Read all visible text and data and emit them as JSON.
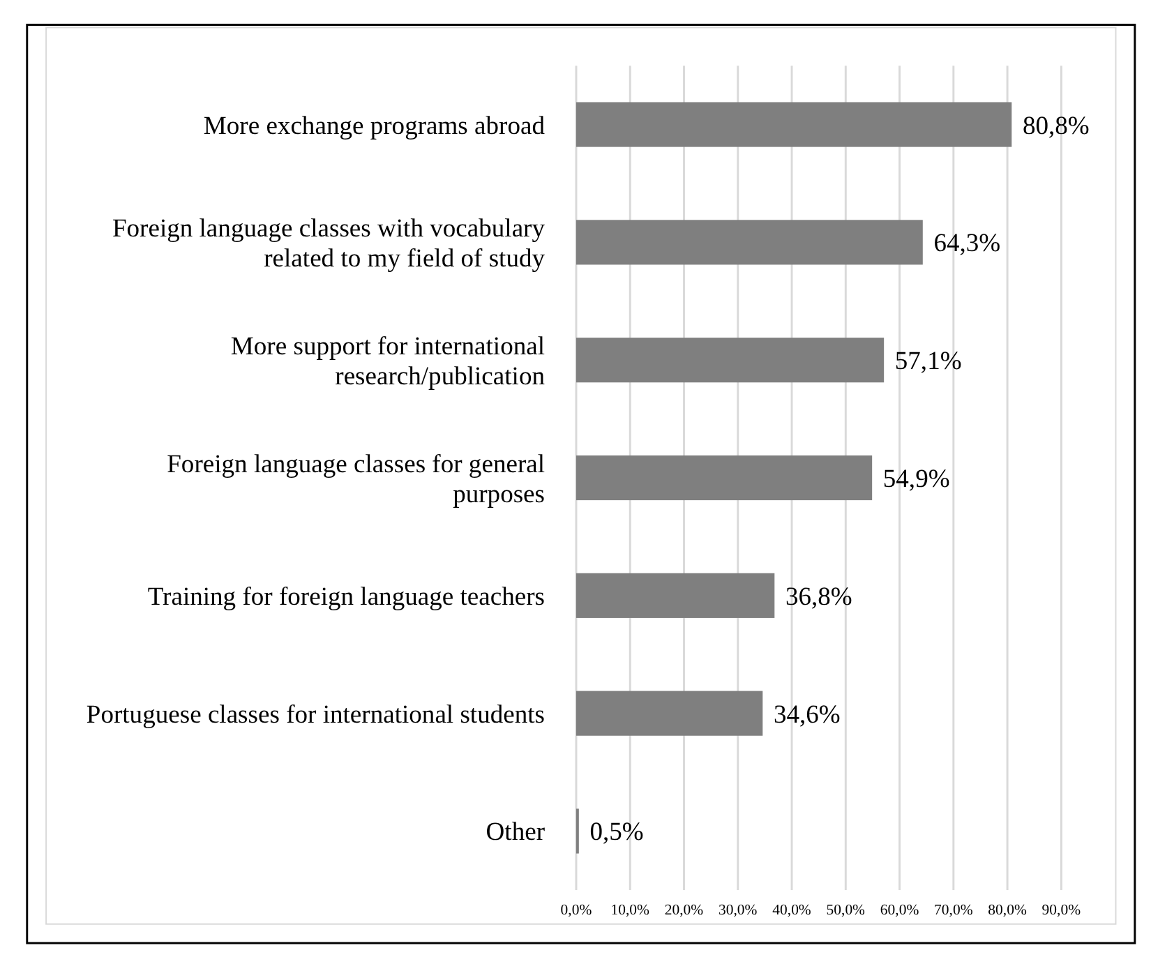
{
  "chart_data": {
    "type": "bar",
    "orientation": "horizontal",
    "categories": [
      "More exchange programs abroad",
      "Foreign language classes with vocabulary related to my field of study",
      "More support for international research/publication",
      "Foreign language classes for general purposes",
      "Training for foreign language teachers",
      "Portuguese classes for international students",
      "Other"
    ],
    "values": [
      80.8,
      64.3,
      57.1,
      54.9,
      36.8,
      34.6,
      0.5
    ],
    "value_labels": [
      "80,8%",
      "64,3%",
      "57,1%",
      "54,9%",
      "36,8%",
      "34,6%",
      "0,5%"
    ],
    "color": "#7f7f7f",
    "xlim": [
      0,
      90
    ],
    "xticks": [
      {
        "value": 0,
        "label": "0,0%"
      },
      {
        "value": 10,
        "label": "10,0%"
      },
      {
        "value": 20,
        "label": "20,0%"
      },
      {
        "value": 30,
        "label": "30,0%"
      },
      {
        "value": 40,
        "label": "40,0%"
      },
      {
        "value": 50,
        "label": "50,0%"
      },
      {
        "value": 60,
        "label": "60,0%"
      },
      {
        "value": 70,
        "label": "70,0%"
      },
      {
        "value": 80,
        "label": "80,0%"
      },
      {
        "value": 90,
        "label": "90,0%"
      }
    ],
    "grid": "x"
  }
}
